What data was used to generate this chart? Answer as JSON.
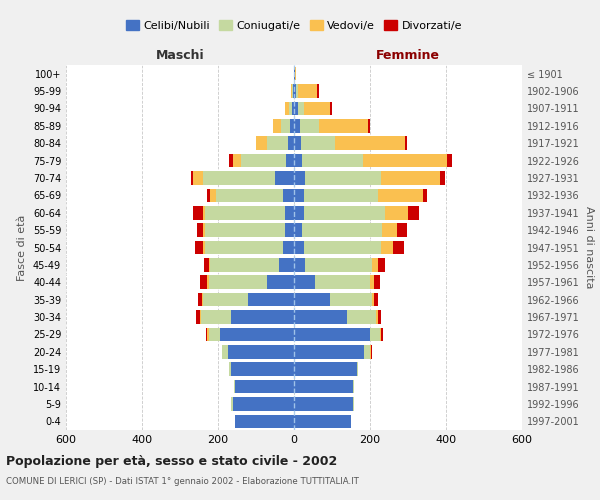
{
  "age_groups": [
    "0-4",
    "5-9",
    "10-14",
    "15-19",
    "20-24",
    "25-29",
    "30-34",
    "35-39",
    "40-44",
    "45-49",
    "50-54",
    "55-59",
    "60-64",
    "65-69",
    "70-74",
    "75-79",
    "80-84",
    "85-89",
    "90-94",
    "95-99",
    "100+"
  ],
  "birth_years": [
    "1997-2001",
    "1992-1996",
    "1987-1991",
    "1982-1986",
    "1977-1981",
    "1972-1976",
    "1967-1971",
    "1962-1966",
    "1957-1961",
    "1952-1956",
    "1947-1951",
    "1942-1946",
    "1937-1941",
    "1932-1936",
    "1927-1931",
    "1922-1926",
    "1917-1921",
    "1912-1916",
    "1907-1911",
    "1902-1906",
    "≤ 1901"
  ],
  "colors": {
    "celibe": "#4472C4",
    "coniugato": "#C5D9A0",
    "vedovo": "#FAC050",
    "divorziato": "#CC0000"
  },
  "maschi": {
    "celibe": [
      155,
      160,
      155,
      165,
      175,
      195,
      165,
      120,
      70,
      40,
      30,
      25,
      25,
      30,
      50,
      20,
      15,
      10,
      5,
      2,
      0
    ],
    "coniugato": [
      0,
      5,
      2,
      5,
      15,
      30,
      80,
      120,
      155,
      180,
      205,
      210,
      210,
      175,
      190,
      120,
      55,
      25,
      8,
      2,
      0
    ],
    "vedovo": [
      0,
      0,
      0,
      0,
      0,
      3,
      2,
      3,
      3,
      3,
      5,
      5,
      5,
      15,
      25,
      20,
      30,
      20,
      10,
      5,
      0
    ],
    "divorziato": [
      0,
      0,
      0,
      0,
      0,
      3,
      10,
      10,
      20,
      15,
      20,
      15,
      25,
      10,
      5,
      10,
      0,
      0,
      0,
      0,
      0
    ]
  },
  "femmine": {
    "nubile": [
      150,
      155,
      155,
      165,
      185,
      200,
      140,
      95,
      55,
      30,
      25,
      22,
      25,
      25,
      28,
      22,
      18,
      15,
      10,
      5,
      2
    ],
    "coniugata": [
      0,
      3,
      2,
      3,
      15,
      25,
      75,
      110,
      145,
      175,
      205,
      210,
      215,
      195,
      200,
      160,
      90,
      50,
      15,
      5,
      0
    ],
    "vedova": [
      0,
      0,
      0,
      0,
      3,
      5,
      5,
      5,
      10,
      15,
      30,
      40,
      60,
      120,
      155,
      220,
      185,
      130,
      70,
      50,
      3
    ],
    "divorziata": [
      0,
      0,
      0,
      0,
      2,
      5,
      10,
      10,
      15,
      20,
      30,
      25,
      30,
      10,
      15,
      15,
      5,
      5,
      5,
      5,
      0
    ]
  },
  "xlim": 600,
  "title": "Popolazione per età, sesso e stato civile - 2002",
  "subtitle": "COMUNE DI LERICI (SP) - Dati ISTAT 1° gennaio 2002 - Elaborazione TUTTITALIA.IT",
  "xlabel_left": "Maschi",
  "xlabel_right": "Femmine",
  "ylabel_left": "Fasce di età",
  "ylabel_right": "Anni di nascita",
  "legend_labels": [
    "Celibi/Nubili",
    "Coniugati/e",
    "Vedovi/e",
    "Divorzati/e"
  ],
  "bg_color": "#f0f0f0",
  "plot_bg": "#ffffff"
}
